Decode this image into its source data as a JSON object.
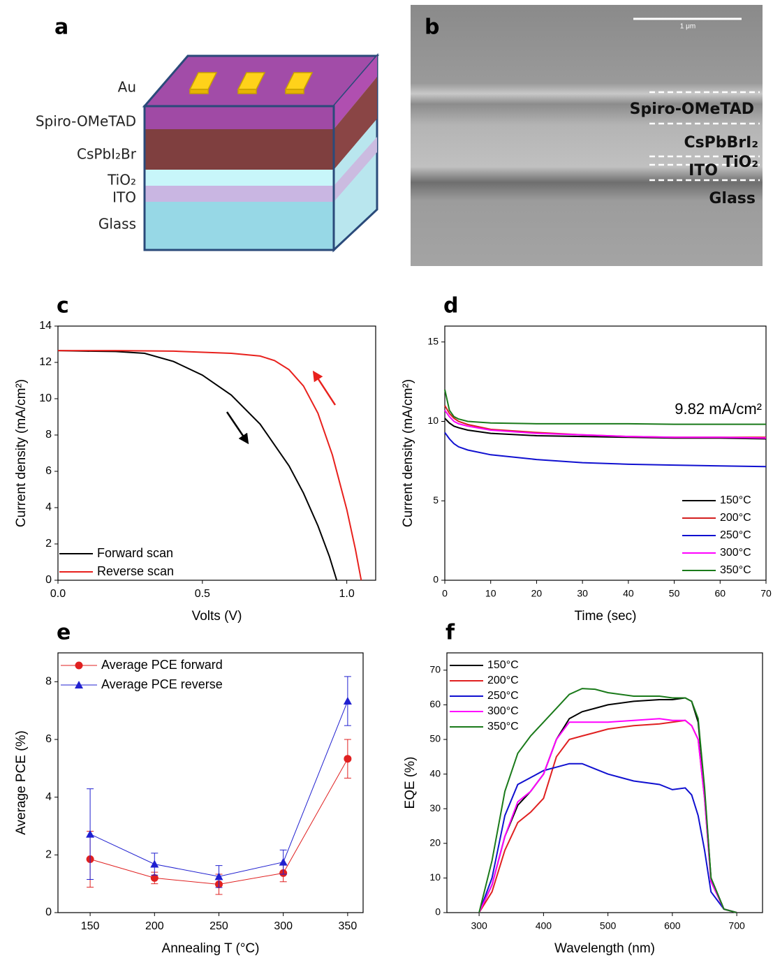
{
  "diagram": {
    "label": "a",
    "layers": [
      "Au",
      "Spiro-OMeTAD",
      "CsPbI₂Br",
      "TiO₂",
      "ITO",
      "Glass"
    ]
  },
  "micrograph": {
    "label": "b",
    "scale_bar": "1 μm",
    "layers": [
      "Spiro-OMeTAD",
      "CsPbBrI₂",
      "TiO₂",
      "ITO",
      "Glass"
    ]
  },
  "chart_data": [
    {
      "type": "line",
      "label": "c",
      "xlabel": "Volts (V)",
      "ylabel": "Current density (mA/cm²)",
      "xlim": [
        0,
        1.1
      ],
      "ylim": [
        0,
        14
      ],
      "xticks": [
        {
          "value": 0,
          "label": "0.0"
        },
        0.5,
        {
          "value": 1,
          "label": "1.0"
        }
      ],
      "yticks": [
        0,
        2,
        4,
        6,
        8,
        10,
        12,
        14
      ],
      "legend": "lower left",
      "series": [
        {
          "name": "Forward scan",
          "color": "#000000",
          "x": [
            0,
            0.1,
            0.2,
            0.3,
            0.4,
            0.5,
            0.6,
            0.7,
            0.8,
            0.85,
            0.9,
            0.94,
            0.965
          ],
          "values": [
            12.65,
            12.62,
            12.6,
            12.5,
            12.05,
            11.3,
            10.2,
            8.6,
            6.3,
            4.8,
            3.0,
            1.3,
            0
          ]
        },
        {
          "name": "Reverse scan",
          "color": "#e8211d",
          "x": [
            0,
            0.2,
            0.4,
            0.6,
            0.7,
            0.75,
            0.8,
            0.85,
            0.9,
            0.95,
            1.0,
            1.03,
            1.05
          ],
          "values": [
            12.65,
            12.65,
            12.62,
            12.5,
            12.35,
            12.1,
            11.6,
            10.7,
            9.2,
            6.9,
            3.9,
            1.7,
            0
          ]
        }
      ]
    },
    {
      "type": "line",
      "label": "d",
      "xlabel": "Time (sec)",
      "ylabel": "Current density (mA/cm²)",
      "xlim": [
        0,
        70
      ],
      "ylim": [
        0,
        16
      ],
      "xticks": [
        0,
        10,
        20,
        30,
        40,
        50,
        60,
        70
      ],
      "yticks": [
        0,
        5,
        10,
        15
      ],
      "legend": "lower right",
      "annotation": "9.82 mA/cm²",
      "x": [
        0,
        1,
        2,
        3,
        5,
        10,
        20,
        30,
        40,
        50,
        60,
        70
      ],
      "series": [
        {
          "name": "150°C",
          "color": "#000000",
          "values": [
            10.2,
            9.9,
            9.7,
            9.6,
            9.45,
            9.25,
            9.1,
            9.05,
            9.0,
            8.95,
            8.95,
            8.9
          ]
        },
        {
          "name": "200°C",
          "color": "#d42020",
          "values": [
            11.0,
            10.5,
            10.2,
            10.0,
            9.8,
            9.5,
            9.3,
            9.15,
            9.05,
            9.0,
            9.0,
            9.0
          ]
        },
        {
          "name": "250°C",
          "color": "#1010d0",
          "values": [
            9.3,
            8.9,
            8.6,
            8.4,
            8.2,
            7.9,
            7.6,
            7.4,
            7.3,
            7.25,
            7.2,
            7.15
          ]
        },
        {
          "name": "300°C",
          "color": "#ff00ff",
          "values": [
            10.7,
            10.3,
            10.0,
            9.85,
            9.7,
            9.45,
            9.25,
            9.15,
            9.05,
            9.0,
            9.0,
            8.95
          ]
        },
        {
          "name": "350°C",
          "color": "#1a7a1a",
          "values": [
            12.0,
            10.7,
            10.3,
            10.15,
            10.0,
            9.9,
            9.85,
            9.85,
            9.85,
            9.82,
            9.82,
            9.82
          ]
        }
      ]
    },
    {
      "type": "line",
      "label": "e",
      "xlabel": "Annealing T (°C)",
      "ylabel": "Average PCE (%)",
      "xlim": [
        125,
        362
      ],
      "ylim": [
        0,
        9
      ],
      "xticks": [
        150,
        200,
        250,
        300,
        350
      ],
      "yticks": [
        0,
        2,
        4,
        6,
        8
      ],
      "legend": "upper left",
      "x": [
        150,
        200,
        250,
        300,
        350
      ],
      "series": [
        {
          "name": "Average PCE forward",
          "color": "#e02020",
          "marker": "circle",
          "values": [
            1.85,
            1.2,
            0.98,
            1.37,
            5.33
          ],
          "errors": [
            0.97,
            0.2,
            0.35,
            0.3,
            0.67
          ]
        },
        {
          "name": "Average PCE reverse",
          "color": "#2020d0",
          "marker": "triangle",
          "values": [
            2.72,
            1.68,
            1.25,
            1.75,
            7.33
          ],
          "errors": [
            1.57,
            0.38,
            0.38,
            0.42,
            0.85
          ]
        }
      ]
    },
    {
      "type": "line",
      "label": "f",
      "xlabel": "Wavelength (nm)",
      "ylabel": "EQE (%)",
      "xlim": [
        250,
        740
      ],
      "ylim": [
        0,
        75
      ],
      "xticks": [
        300,
        400,
        500,
        600,
        700
      ],
      "yticks": [
        0,
        10,
        20,
        30,
        40,
        50,
        60,
        70
      ],
      "legend": "upper left",
      "x": [
        300,
        320,
        340,
        360,
        380,
        400,
        420,
        440,
        460,
        480,
        500,
        540,
        580,
        600,
        620,
        630,
        640,
        650,
        660,
        680,
        700
      ],
      "series": [
        {
          "name": "150°C",
          "color": "#000000",
          "values": [
            0,
            8,
            22,
            31,
            35,
            40,
            50,
            56,
            58,
            59,
            60,
            61,
            61.5,
            61.5,
            62,
            61,
            55,
            35,
            10,
            1,
            0
          ]
        },
        {
          "name": "200°C",
          "color": "#e02020",
          "values": [
            0,
            6,
            18,
            26,
            29,
            33,
            45,
            50,
            51,
            52,
            53,
            54,
            54.5,
            55,
            55.5,
            54,
            50,
            33,
            9,
            1,
            0
          ]
        },
        {
          "name": "250°C",
          "color": "#1010d0",
          "values": [
            0,
            10,
            28,
            37,
            39,
            41,
            42,
            43,
            43,
            41.5,
            40,
            38,
            37,
            35.5,
            36,
            34,
            28,
            18,
            6,
            1,
            0
          ]
        },
        {
          "name": "300°C",
          "color": "#ff00ff",
          "values": [
            0,
            8,
            22,
            32,
            35,
            40,
            50,
            55,
            55,
            55,
            55,
            55.5,
            56,
            55.5,
            55.5,
            54,
            50,
            33,
            9,
            1,
            0
          ]
        },
        {
          "name": "350°C",
          "color": "#1a7a1a",
          "values": [
            0,
            15,
            35,
            46,
            51,
            55,
            59,
            63,
            64.7,
            64.5,
            63.5,
            62.5,
            62.5,
            62,
            62,
            61,
            56,
            36,
            10,
            1,
            0
          ]
        }
      ]
    }
  ]
}
